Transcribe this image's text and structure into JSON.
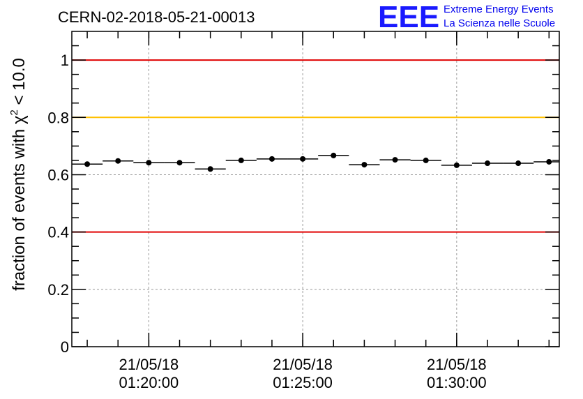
{
  "header": {
    "title": "CERN-02-2018-05-21-00013",
    "logo_text": "EEE",
    "logo_line1": "Extreme Energy Events",
    "logo_line2": "La Scienza nelle Scuole"
  },
  "colors": {
    "red_line": "#e00000",
    "yellow_line": "#ffc000",
    "logo_blue": "#1a1aff",
    "grid": "#999999"
  },
  "chart_data": {
    "type": "scatter",
    "title": "CERN-02-2018-05-21-00013",
    "xlabel": "",
    "ylabel_parts": [
      "fraction of events with ",
      "χ",
      "2",
      " < 10.0"
    ],
    "ylim": [
      0,
      1.1
    ],
    "xlim": [
      "2018-05-21 01:17:30",
      "2018-05-21 01:33:20"
    ],
    "grid": true,
    "yticks": [
      {
        "value": 0,
        "label": "0"
      },
      {
        "value": 0.2,
        "label": "0.2"
      },
      {
        "value": 0.4,
        "label": "0.4"
      },
      {
        "value": 0.6,
        "label": "0.6"
      },
      {
        "value": 0.8,
        "label": "0.8"
      },
      {
        "value": 1,
        "label": "1"
      }
    ],
    "xticks": [
      {
        "time": "2018-05-21 01:20:00",
        "date_label": "21/05/18",
        "time_label": "01:20:00"
      },
      {
        "time": "2018-05-21 01:25:00",
        "date_label": "21/05/18",
        "time_label": "01:25:00"
      },
      {
        "time": "2018-05-21 01:30:00",
        "date_label": "21/05/18",
        "time_label": "01:30:00"
      }
    ],
    "reference_lines": [
      {
        "value": 1.0,
        "color": "#e00000"
      },
      {
        "value": 0.8,
        "color": "#ffc000"
      },
      {
        "value": 0.4,
        "color": "#e00000"
      }
    ],
    "points": [
      {
        "x": "2018-05-21 01:18:00",
        "y": 0.637
      },
      {
        "x": "2018-05-21 01:19:00",
        "y": 0.648
      },
      {
        "x": "2018-05-21 01:20:00",
        "y": 0.642
      },
      {
        "x": "2018-05-21 01:21:00",
        "y": 0.642
      },
      {
        "x": "2018-05-21 01:22:00",
        "y": 0.62
      },
      {
        "x": "2018-05-21 01:23:00",
        "y": 0.65
      },
      {
        "x": "2018-05-21 01:24:00",
        "y": 0.655
      },
      {
        "x": "2018-05-21 01:25:00",
        "y": 0.655
      },
      {
        "x": "2018-05-21 01:26:00",
        "y": 0.667
      },
      {
        "x": "2018-05-21 01:27:00",
        "y": 0.635
      },
      {
        "x": "2018-05-21 01:28:00",
        "y": 0.652
      },
      {
        "x": "2018-05-21 01:29:00",
        "y": 0.65
      },
      {
        "x": "2018-05-21 01:30:00",
        "y": 0.633
      },
      {
        "x": "2018-05-21 01:31:00",
        "y": 0.64
      },
      {
        "x": "2018-05-21 01:32:00",
        "y": 0.64
      },
      {
        "x": "2018-05-21 01:33:00",
        "y": 0.645
      }
    ]
  }
}
